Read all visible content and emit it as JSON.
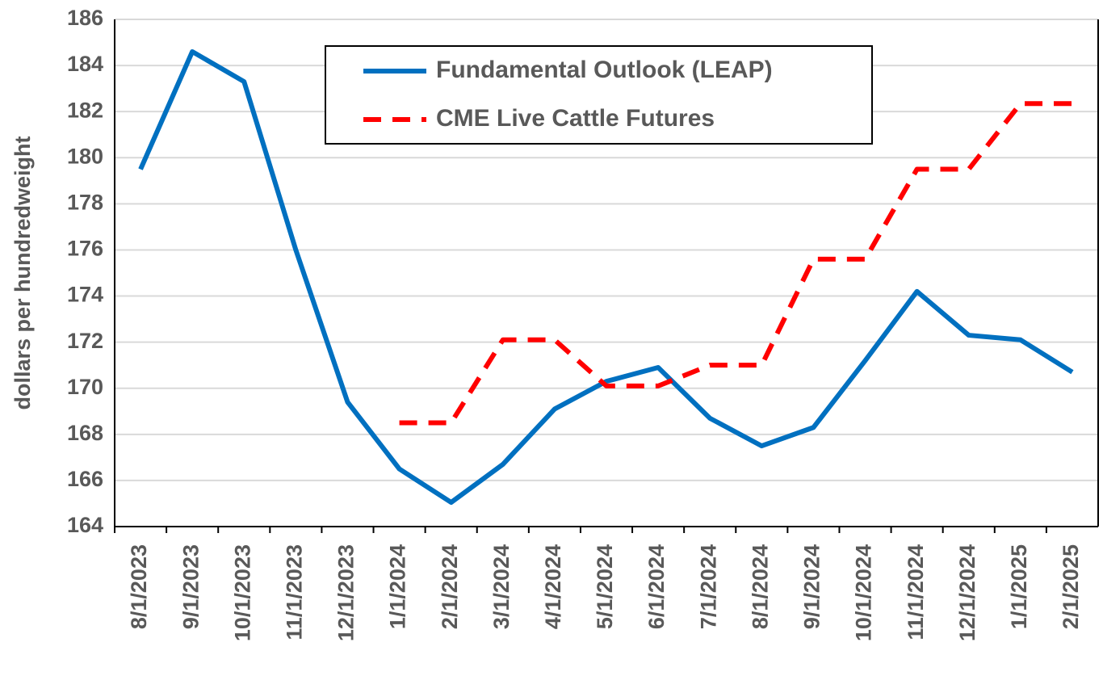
{
  "chart_data": {
    "type": "line",
    "y_label": "dollars per hundredweight",
    "categories": [
      "8/1/2023",
      "9/1/2023",
      "10/1/2023",
      "11/1/2023",
      "12/1/2023",
      "1/1/2024",
      "2/1/2024",
      "3/1/2024",
      "4/1/2024",
      "5/1/2024",
      "6/1/2024",
      "7/1/2024",
      "8/1/2024",
      "9/1/2024",
      "10/1/2024",
      "11/1/2024",
      "12/1/2024",
      "1/1/2025",
      "2/1/2025"
    ],
    "series": [
      {
        "name": "Fundamental Outlook (LEAP)",
        "color": "#0070c0",
        "dashed": false,
        "values": [
          179.5,
          184.6,
          183.3,
          176,
          169.4,
          166.5,
          165.05,
          166.7,
          169.1,
          170.3,
          170.9,
          168.7,
          167.5,
          168.3,
          171.2,
          174.2,
          172.3,
          172.1,
          170.7
        ]
      },
      {
        "name": "CME Live Cattle Futures",
        "color": "#ff0000",
        "dashed": true,
        "values": [
          null,
          null,
          null,
          null,
          null,
          168.5,
          168.5,
          172.1,
          172.1,
          170.1,
          170.1,
          171,
          171,
          175.6,
          175.6,
          179.5,
          179.5,
          182.35,
          182.35
        ]
      }
    ],
    "ylim": [
      164,
      186
    ],
    "yticks": [
      164,
      166,
      168,
      170,
      172,
      174,
      176,
      178,
      180,
      182,
      184,
      186
    ],
    "grid": true
  }
}
